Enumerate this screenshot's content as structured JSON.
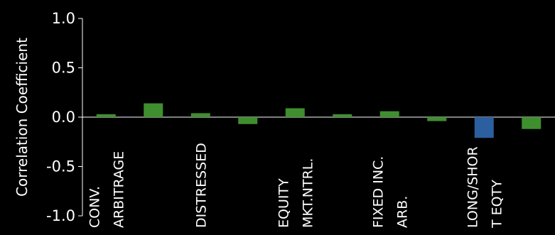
{
  "chart_data": {
    "type": "bar",
    "title": "",
    "xlabel": "",
    "ylabel": "Correlation Coefficient",
    "ylim": [
      -1.0,
      1.0
    ],
    "yticks": [
      "1.0",
      "0.5",
      "0.0",
      "-0.5",
      "-1.0"
    ],
    "ytick_values": [
      1.0,
      0.5,
      0.0,
      -0.5,
      -1.0
    ],
    "grid": false,
    "categories": [
      {
        "lines": [
          "CONV.",
          "ARBITRAGE"
        ]
      },
      {
        "lines": []
      },
      {
        "lines": [
          "DISTRESSED"
        ]
      },
      {
        "lines": []
      },
      {
        "lines": [
          "EQUITY",
          "MKT.NTRL."
        ]
      },
      {
        "lines": []
      },
      {
        "lines": [
          "FIXED INC.",
          "ARB."
        ]
      },
      {
        "lines": []
      },
      {
        "lines": [
          "LONG/SHOR",
          "T EQTY"
        ]
      },
      {
        "lines": []
      }
    ],
    "values": [
      0.03,
      0.14,
      0.04,
      -0.07,
      0.09,
      0.03,
      0.06,
      -0.04,
      -0.21,
      -0.12
    ],
    "colors": [
      "#3f8f2f",
      "#3f8f2f",
      "#3f8f2f",
      "#3f8f2f",
      "#3f8f2f",
      "#3f8f2f",
      "#3f8f2f",
      "#3f8f2f",
      "#2b5fa0",
      "#3f8f2f"
    ]
  }
}
